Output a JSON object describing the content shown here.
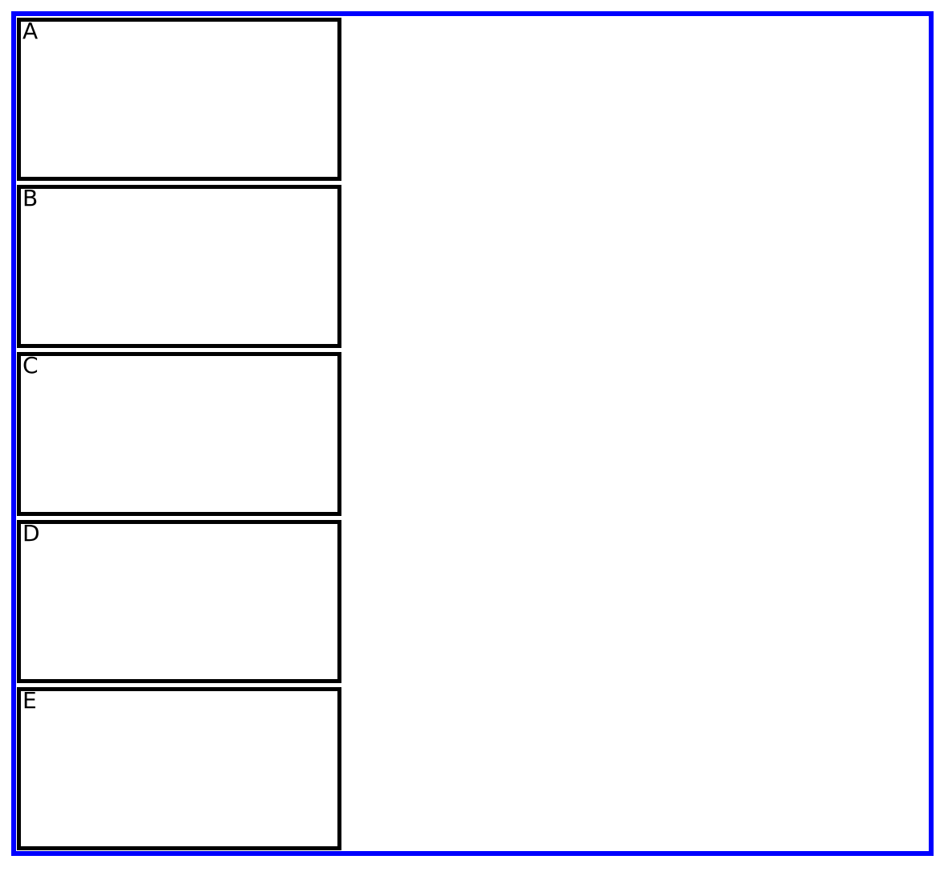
{
  "figure": {
    "background_color": "#ffffff",
    "frame_color": "#0000ff",
    "panel_border_color": "#000000",
    "panel_label_color": "#000000",
    "panels": [
      {
        "label": "A"
      },
      {
        "label": "B"
      },
      {
        "label": "C"
      },
      {
        "label": "D"
      },
      {
        "label": "E"
      }
    ]
  }
}
